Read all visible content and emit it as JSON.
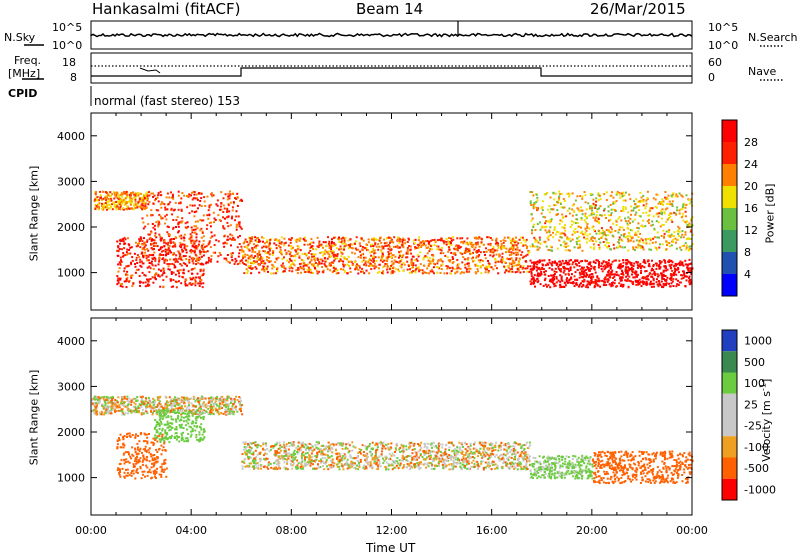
{
  "header": {
    "station": "Hankasalmi (fitACF)",
    "beam": "Beam 14",
    "date": "26/Mar/2015"
  },
  "noise_panel": {
    "left_label": "N.Sky",
    "right_label": "N.Search",
    "left_ticks": [
      "10^5",
      "10^0"
    ],
    "right_ticks": [
      "10^5",
      "10^0"
    ]
  },
  "freq_panel": {
    "left_label_line1": "Freq.",
    "left_label_line2": "[MHz]",
    "right_label": "Nave",
    "left_ticks": [
      "18",
      "8"
    ],
    "right_ticks": [
      "60",
      "0"
    ]
  },
  "cpid_panel": {
    "label": "CPID",
    "mode_text": "normal (fast stereo) 153"
  },
  "power_panel": {
    "ylabel": "Slant Range [km]",
    "yticks": [
      "4000",
      "3000",
      "2000",
      "1000"
    ],
    "colorbar_label": "Power [dB]",
    "colorbar_ticks": [
      "28",
      "24",
      "20",
      "16",
      "12",
      "8",
      "4"
    ]
  },
  "velocity_panel": {
    "ylabel": "Slant Range [km]",
    "yticks": [
      "4000",
      "3000",
      "2000",
      "1000"
    ],
    "colorbar_label": "Velocity  [m s",
    "colorbar_label_sup": "-1",
    "colorbar_label_end": "]",
    "colorbar_ticks": [
      "1000",
      "500",
      "100",
      "25",
      "-25",
      "-100",
      "-500",
      "-1000"
    ]
  },
  "xaxis": {
    "label": "Time UT",
    "ticks": [
      "00:00",
      "04:00",
      "08:00",
      "12:00",
      "16:00",
      "20:00",
      "00:00"
    ]
  },
  "colors": {
    "power_scale": [
      "#0000ff",
      "#2050b0",
      "#3a9a60",
      "#6cc040",
      "#f0e000",
      "#ff8000",
      "#ff2000",
      "#ff0000"
    ],
    "velocity_scale": [
      "#2040c0",
      "#3a8a50",
      "#6ccc40",
      "#c8c8c8",
      "#c8c8c8",
      "#f0a020",
      "#ff6000",
      "#ff0000"
    ]
  },
  "chart_data": [
    {
      "type": "heatmap",
      "title": "Power [dB]",
      "xlabel": "Time UT",
      "ylabel": "Slant Range [km]",
      "xlim_hours": [
        0,
        24
      ],
      "ylim": [
        180,
        4500
      ],
      "clim": [
        0,
        30
      ],
      "features": [
        {
          "start_hour": 0.1,
          "end_hour": 2.3,
          "range_km": [
            2400,
            2800
          ],
          "power_db": 20
        },
        {
          "start_hour": 1.0,
          "end_hour": 4.5,
          "range_km": [
            700,
            1800
          ],
          "power_db": 26
        },
        {
          "start_hour": 2.0,
          "end_hour": 6.0,
          "range_km": [
            1200,
            2800
          ],
          "power_db": 24
        },
        {
          "start_hour": 6.0,
          "end_hour": 17.5,
          "range_km": [
            1000,
            1800
          ],
          "power_db": 22
        },
        {
          "start_hour": 17.5,
          "end_hour": 24.0,
          "range_km": [
            700,
            1300
          ],
          "power_db": 30
        },
        {
          "start_hour": 17.5,
          "end_hour": 24.0,
          "range_km": [
            1500,
            2800
          ],
          "power_db": 18
        }
      ]
    },
    {
      "type": "heatmap",
      "title": "Velocity [m s-1]",
      "xlabel": "Time UT",
      "ylabel": "Slant Range [km]",
      "xlim_hours": [
        0,
        24
      ],
      "ylim": [
        180,
        4500
      ],
      "clim": [
        -1000,
        1000
      ],
      "features": [
        {
          "start_hour": 0.0,
          "end_hour": 6.0,
          "range_km": [
            2400,
            2800
          ],
          "velocity": 0
        },
        {
          "start_hour": 1.0,
          "end_hour": 3.0,
          "range_km": [
            1000,
            2000
          ],
          "velocity": -300
        },
        {
          "start_hour": 2.5,
          "end_hour": 4.5,
          "range_km": [
            1800,
            2500
          ],
          "velocity": 300
        },
        {
          "start_hour": 6.0,
          "end_hour": 17.5,
          "range_km": [
            1200,
            1800
          ],
          "velocity": 0
        },
        {
          "start_hour": 17.5,
          "end_hour": 20.0,
          "range_km": [
            1000,
            1500
          ],
          "velocity": 200
        },
        {
          "start_hour": 20.0,
          "end_hour": 24.0,
          "range_km": [
            900,
            1600
          ],
          "velocity": -300
        }
      ]
    }
  ]
}
